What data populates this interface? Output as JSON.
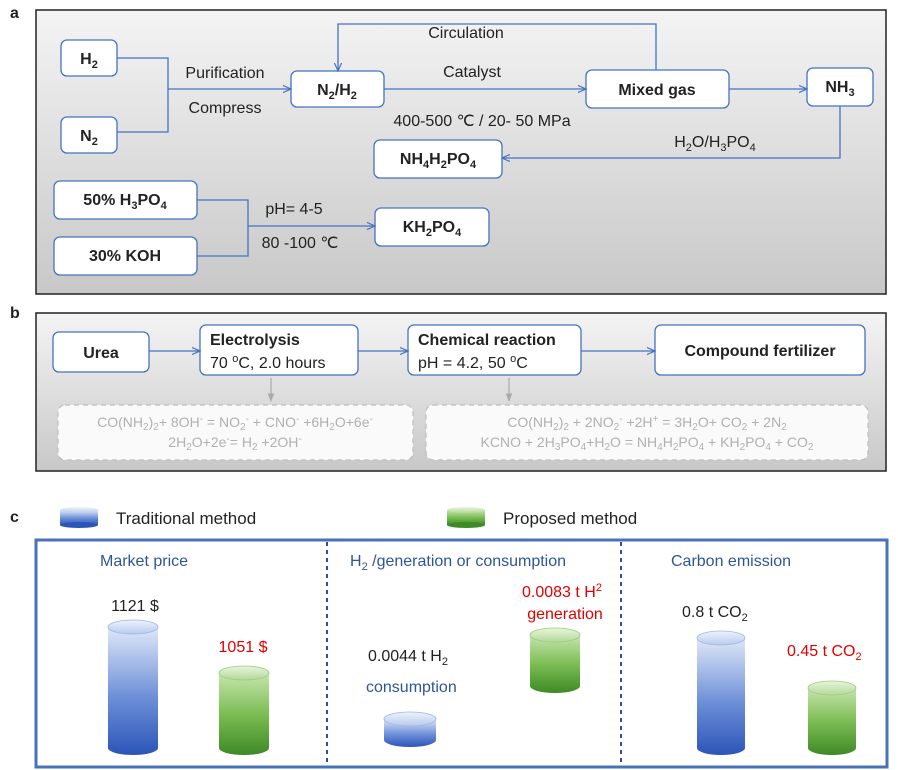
{
  "panel_a": {
    "letter": "a",
    "nodes": {
      "h2": {
        "main": "H",
        "sub": "2"
      },
      "n2": {
        "main": "N",
        "sub": "2"
      },
      "n2h2": {
        "p1": "N",
        "s1": "2",
        "p2": "/H",
        "s2": "2"
      },
      "mixed_gas": "Mixed gas",
      "nh3": {
        "main": "NH",
        "sub": "3"
      },
      "nh4h2po4": {
        "p1": "NH",
        "s1": "4",
        "p2": "H",
        "s2": "2",
        "p3": "PO",
        "s3": "4"
      },
      "h3po4_50": {
        "pre": "50% H",
        "s1": "3",
        "mid": "PO",
        "s2": "4"
      },
      "koh_30": "30% KOH",
      "kh2po4": {
        "p1": "KH",
        "s1": "2",
        "p2": "PO",
        "s2": "4"
      }
    },
    "labels": {
      "circulation": "Circulation",
      "purification": "Purification",
      "compress": "Compress",
      "catalyst": "Catalyst",
      "conditions": "400-500 ℃ / 20- 50 MPa",
      "h2o_h3po4": {
        "p1": "H",
        "s1": "2",
        "p2": "O/H",
        "s2": "3",
        "p3": "PO",
        "s3": "4"
      },
      "ph": "pH= 4-5",
      "temp": "80 -100 ℃"
    }
  },
  "panel_b": {
    "letter": "b",
    "urea": "Urea",
    "electrolysis": {
      "title": "Electrolysis",
      "cond_pre": "70 ",
      "cond_sup": "o",
      "cond_post": "C, 2.0 hours"
    },
    "chemical": {
      "title": "Chemical reaction",
      "cond_pre": "pH = 4.2, 50 ",
      "cond_sup": "o",
      "cond_post": "C"
    },
    "compound": "Compound fertilizer",
    "eq1": {
      "a": "CO(NH",
      "b": "2",
      "c": ")",
      "d": "2",
      "e": "+ 8OH",
      "f": "-",
      "g": " = NO",
      "h": "2",
      "i": "-",
      "j": " + CNO",
      "k": "-",
      "l": " +6H",
      "m": "2",
      "n": "O+6e",
      "o": "-"
    },
    "eq2": {
      "a": "2H",
      "b": "2",
      "c": "O+2e",
      "d": "-",
      "e": "= H",
      "f": "2",
      "g": " +2OH",
      "h": "-"
    },
    "eq3": {
      "a": "CO(NH",
      "b": "2",
      "c": ")",
      "d": "2",
      "e": " + 2NO",
      "f": "2",
      "g": "-",
      "h": " +2H",
      "i": "+",
      "j": " = 3H",
      "k": "2",
      "l": "O+ CO",
      "m": "2",
      "n": " + 2N",
      "o": "2"
    },
    "eq4": {
      "a": "KCNO  + 2H",
      "b": "3",
      "c": "PO",
      "d": "4",
      "e": "+H",
      "f": "2",
      "g": "O = NH",
      "h": "4",
      "i": "H",
      "j": "2",
      "k": "PO",
      "l": "4",
      "m": " + KH",
      "n": "2",
      "o": "PO",
      "p": "4",
      "q": " + CO",
      "r": "2"
    }
  },
  "panel_c": {
    "letter": "c",
    "legend": {
      "traditional": "Traditional method",
      "proposed": "Proposed method"
    },
    "colors": {
      "traditional": "#3a66c4",
      "proposed": "#5fa83a",
      "proposed_label": "#e00000",
      "title": "#2f5597"
    },
    "market": {
      "title": "Market price",
      "traditional": "1121 $",
      "proposed": "1051 $"
    },
    "h2": {
      "title_pre": "H",
      "title_sub": "2",
      "title_post": " /generation or consumption",
      "traditional_pre": "0.0044 t H",
      "traditional_sub": "2",
      "traditional_label": "consumption",
      "proposed_pre": "0.0083 t H",
      "proposed_sub": "2",
      "proposed_label": "generation"
    },
    "carbon": {
      "title": "Carbon emission",
      "traditional_pre": "0.8 t CO",
      "traditional_sub": "2",
      "proposed_pre": "0.45 t CO",
      "proposed_sub": "2"
    }
  }
}
